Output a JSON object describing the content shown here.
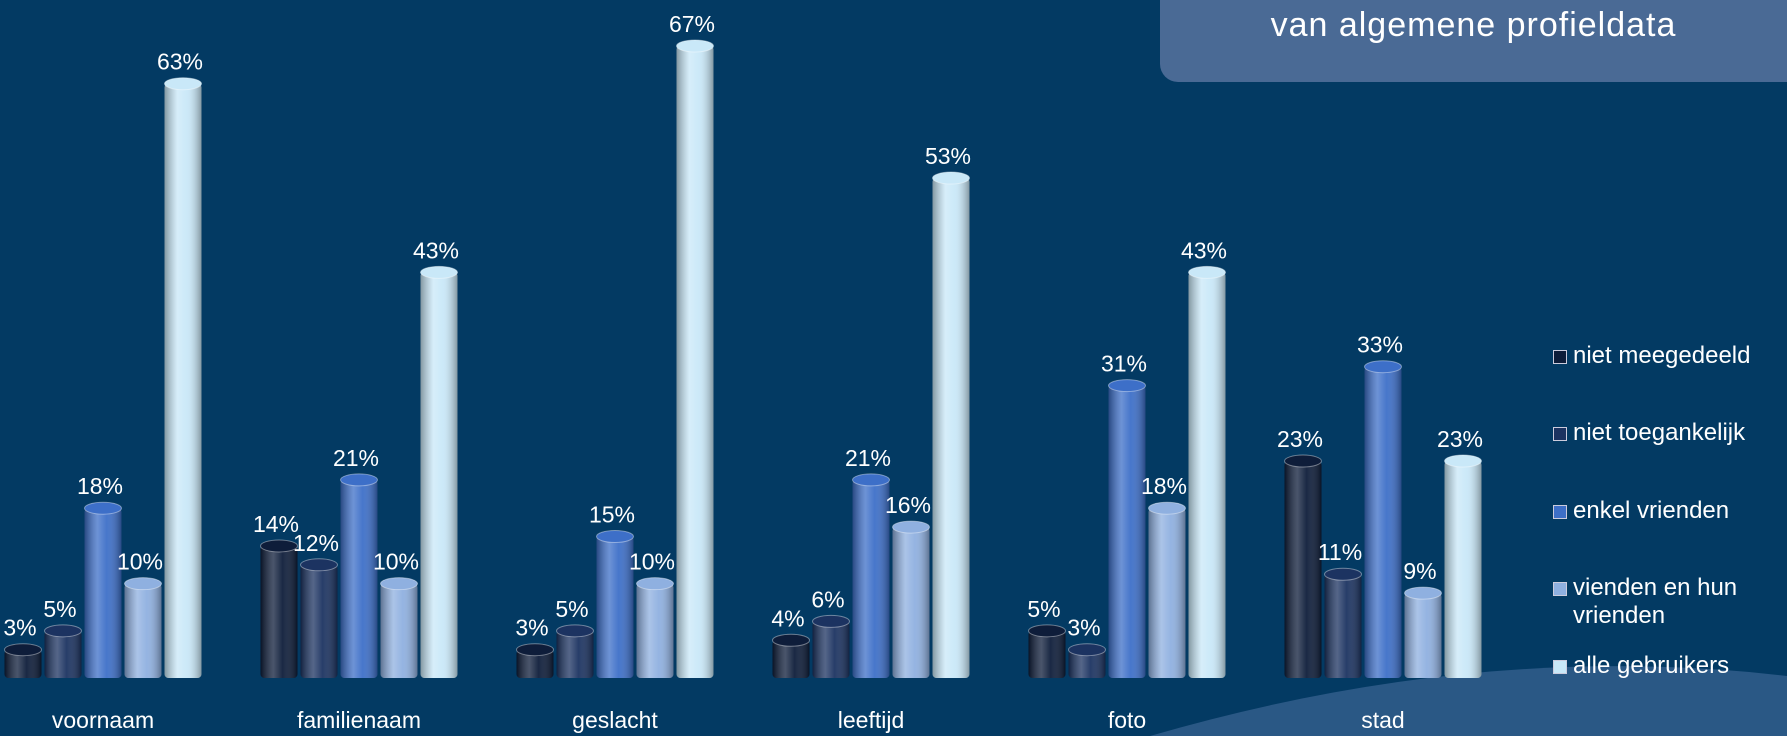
{
  "chart_data": {
    "type": "bar",
    "subtitle": "van algemene profieldata",
    "categories": [
      "voornaam",
      "familienaam",
      "geslacht",
      "leeftijd",
      "foto",
      "stad"
    ],
    "series": [
      {
        "name": "niet meegedeeld",
        "color": "#0e1d3a",
        "values": [
          3,
          14,
          3,
          4,
          5,
          23
        ],
        "value_labels": [
          "3%",
          "14%",
          "3%",
          "4%",
          "5%",
          "23%"
        ]
      },
      {
        "name": "niet toegankelijk",
        "color": "#1c3361",
        "values": [
          5,
          12,
          5,
          6,
          3,
          11
        ],
        "value_labels": [
          "5%",
          "12%",
          "5%",
          "6%",
          "3%",
          "11%"
        ]
      },
      {
        "name": "enkel vrienden",
        "color": "#3d6fc8",
        "values": [
          18,
          21,
          15,
          21,
          31,
          33
        ],
        "value_labels": [
          "18%",
          "21%",
          "15%",
          "21%",
          "31%",
          "33%"
        ]
      },
      {
        "name": "vienden en hun vrienden",
        "color": "#8fb0e0",
        "values": [
          10,
          10,
          10,
          16,
          18,
          9
        ],
        "value_labels": [
          "10%",
          "10%",
          "10%",
          "16%",
          "18%",
          "9%"
        ]
      },
      {
        "name": "alle gebruikers",
        "color": "#c9e8f8",
        "values": [
          63,
          43,
          67,
          53,
          43,
          23
        ],
        "value_labels": [
          "63%",
          "43%",
          "67%",
          "53%",
          "43%",
          "23%"
        ]
      }
    ]
  }
}
